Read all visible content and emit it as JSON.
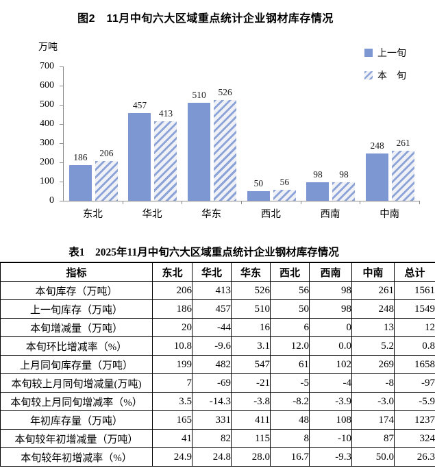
{
  "figure": {
    "title": "图2　11月中旬六大区域重点统计企业钢材库存情况",
    "y_unit": "万吨",
    "legend": [
      {
        "label": "上一旬",
        "style": "solid"
      },
      {
        "label": "本　旬",
        "style": "hatch"
      }
    ]
  },
  "colors": {
    "bar_solid": "#7D97D2",
    "hatch_stripe": "#8CA3D8",
    "hatch_bg": "#EFF1F7",
    "axis": "#8a8a8a"
  },
  "chart_data": {
    "type": "bar",
    "categories": [
      "东北",
      "华北",
      "华东",
      "西北",
      "西南",
      "中南"
    ],
    "series": [
      {
        "name": "上一旬",
        "style": "solid",
        "values": [
          186,
          457,
          510,
          50,
          98,
          248
        ]
      },
      {
        "name": "本旬",
        "style": "hatch",
        "values": [
          206,
          413,
          526,
          56,
          98,
          261
        ]
      }
    ],
    "title": "图2　11月中旬六大区域重点统计企业钢材库存情况",
    "xlabel": "",
    "ylabel": "万吨",
    "ylim": [
      0,
      700
    ],
    "yticks": [
      "700",
      "600",
      "500",
      "400",
      "300",
      "200",
      "100",
      "0"
    ],
    "grid": false,
    "legend_position": "top-right"
  },
  "table": {
    "title": "表1　2025年11月中旬六大区域重点统计企业钢材库存情况",
    "columns": [
      "指标",
      "东北",
      "华北",
      "华东",
      "西北",
      "西南",
      "中南",
      "总计"
    ],
    "rows": [
      {
        "label": "本旬库存（万吨）",
        "values": [
          "206",
          "413",
          "526",
          "56",
          "98",
          "261",
          "1561"
        ]
      },
      {
        "label": "上一旬库存（万吨）",
        "values": [
          "186",
          "457",
          "510",
          "50",
          "98",
          "248",
          "1549"
        ]
      },
      {
        "label": "本旬增减量（万吨）",
        "values": [
          "20",
          "-44",
          "16",
          "6",
          "0",
          "13",
          "12"
        ]
      },
      {
        "label": "本旬环比增减率（%）",
        "values": [
          "10.8",
          "-9.6",
          "3.1",
          "12.0",
          "0.0",
          "5.2",
          "0.8"
        ]
      },
      {
        "label": "上月同旬库存量（万吨）",
        "values": [
          "199",
          "482",
          "547",
          "61",
          "102",
          "269",
          "1658"
        ]
      },
      {
        "label": "本旬较上月同旬增减量(万吨)",
        "values": [
          "7",
          "-69",
          "-21",
          "-5",
          "-4",
          "-8",
          "-97"
        ]
      },
      {
        "label": "本旬较上月同旬增减率（%）",
        "values": [
          "3.5",
          "-14.3",
          "-3.8",
          "-8.2",
          "-3.9",
          "-3.0",
          "-5.9"
        ]
      },
      {
        "label": "年初库存量（万吨）",
        "values": [
          "165",
          "331",
          "411",
          "48",
          "108",
          "174",
          "1237"
        ]
      },
      {
        "label": "本旬较年初增减量（万吨）",
        "values": [
          "41",
          "82",
          "115",
          "8",
          "-10",
          "87",
          "324"
        ]
      },
      {
        "label": "本旬较年初增减率（%）",
        "values": [
          "24.9",
          "24.8",
          "28.0",
          "16.7",
          "-9.3",
          "50.0",
          "26.3"
        ]
      }
    ]
  }
}
